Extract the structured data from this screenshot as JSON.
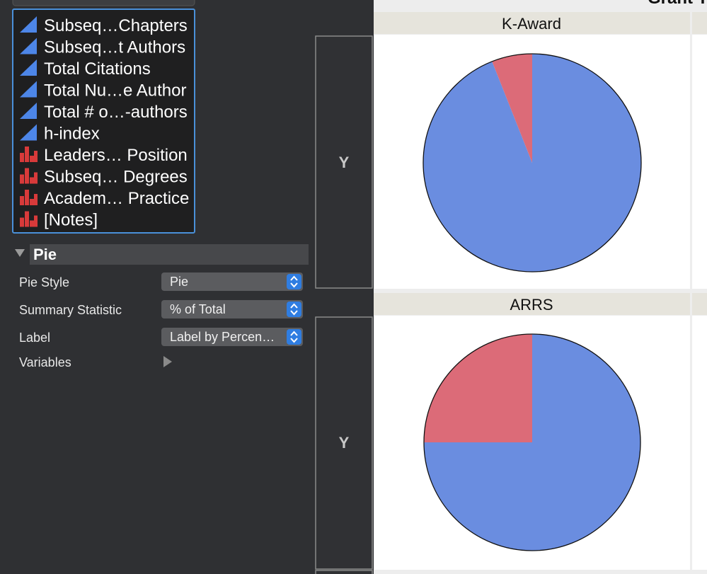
{
  "variables": [
    {
      "name": "Subseq…Chapters",
      "kind": "continuous"
    },
    {
      "name": "Subseq…t Authors",
      "kind": "continuous"
    },
    {
      "name": "Total Citations",
      "kind": "continuous"
    },
    {
      "name": "Total Nu…e Author",
      "kind": "continuous"
    },
    {
      "name": "Total # o…-authors",
      "kind": "continuous"
    },
    {
      "name": "h-index",
      "kind": "continuous"
    },
    {
      "name": "Leaders… Position",
      "kind": "nominal"
    },
    {
      "name": "Subseq… Degrees",
      "kind": "nominal"
    },
    {
      "name": "Academ… Practice",
      "kind": "nominal"
    },
    {
      "name": "[Notes]",
      "kind": "nominal"
    }
  ],
  "section": {
    "title": "Pie",
    "options": [
      {
        "label": "Pie Style",
        "value": "Pie"
      },
      {
        "label": "Summary Statistic",
        "value": "% of Total"
      },
      {
        "label": "Label",
        "value": "Label by Percen…"
      }
    ],
    "variables_label": "Variables"
  },
  "drop_zone_label": "Y",
  "group_title": "Grant T",
  "chart_data": [
    {
      "type": "pie",
      "title": "K-Award",
      "values": [
        94,
        6
      ],
      "colors": [
        "#6a8de0",
        "#dc6b78"
      ]
    },
    {
      "type": "pie",
      "title": "ARRS",
      "values": [
        75,
        25
      ],
      "colors": [
        "#6a8de0",
        "#dc6b78"
      ]
    }
  ]
}
